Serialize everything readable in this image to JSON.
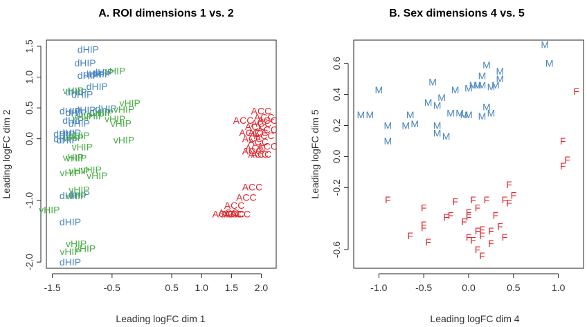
{
  "colors": {
    "blue": "#4a86c0",
    "green": "#4aae44",
    "red": "#e0262d"
  },
  "chart_data": [
    {
      "type": "scatter",
      "title": "A. ROI dimensions 1 vs. 2",
      "xlabel": "Leading logFC dim 1",
      "ylabel": "Leading logFC dim 2",
      "xlim": [
        -1.6,
        2.25
      ],
      "ylim": [
        -2.1,
        1.6
      ],
      "xticks": [
        -1.5,
        -0.5,
        0.5,
        1.0,
        1.5,
        2.0
      ],
      "xtick_labels": [
        "-1.5",
        "-0.5",
        "0.5",
        "1.0",
        "1.5",
        "2.0"
      ],
      "yticks": [
        1.5,
        1.0,
        0.5,
        0.0,
        -1.0,
        -2.0
      ],
      "ytick_labels": [
        "1.5",
        "1.0",
        "0.5",
        "0.0",
        "-1.0",
        "-2.0"
      ],
      "series": [
        {
          "name": "dHIP",
          "color": "#4a86c0",
          "points": [
            [
              -0.9,
              1.45
            ],
            [
              -0.95,
              1.23
            ],
            [
              -0.8,
              1.05
            ],
            [
              -0.9,
              1.03
            ],
            [
              -0.7,
              1.05
            ],
            [
              -0.65,
              1.08
            ],
            [
              -0.75,
              0.85
            ],
            [
              -1.1,
              0.76
            ],
            [
              -1.0,
              0.72
            ],
            [
              -0.95,
              0.47
            ],
            [
              -1.2,
              0.45
            ],
            [
              -1.1,
              0.42
            ],
            [
              -0.6,
              0.49
            ],
            [
              -0.7,
              0.43
            ],
            [
              -1.15,
              0.3
            ],
            [
              -1.05,
              0.25
            ],
            [
              -1.2,
              0.1
            ],
            [
              -1.3,
              0.08
            ],
            [
              -1.25,
              -0.02
            ],
            [
              -1.3,
              0.0
            ],
            [
              -1.05,
              -0.9
            ],
            [
              -1.2,
              -0.92
            ],
            [
              -1.2,
              -1.35
            ],
            [
              -1.2,
              -2.0
            ]
          ]
        },
        {
          "name": "vHIP",
          "color": "#4aae44",
          "points": [
            [
              -0.45,
              1.1
            ],
            [
              -1.15,
              0.78
            ],
            [
              -0.2,
              0.58
            ],
            [
              -0.3,
              0.48
            ],
            [
              -0.65,
              0.42
            ],
            [
              -0.8,
              0.37
            ],
            [
              -0.45,
              0.32
            ],
            [
              -0.35,
              0.25
            ],
            [
              -1.0,
              0.36
            ],
            [
              -0.3,
              -0.02
            ],
            [
              -1.0,
              -0.13
            ],
            [
              -1.05,
              0.05
            ],
            [
              -1.15,
              0.02
            ],
            [
              -1.15,
              -0.3
            ],
            [
              -1.1,
              -0.31
            ],
            [
              -0.85,
              -0.5
            ],
            [
              -1.05,
              -0.52
            ],
            [
              -1.2,
              -0.55
            ],
            [
              -0.75,
              -0.6
            ],
            [
              -1.05,
              -0.83
            ],
            [
              -1.1,
              -0.92
            ],
            [
              -1.55,
              -1.15
            ],
            [
              -1.1,
              -1.7
            ],
            [
              -0.95,
              -1.78
            ],
            [
              -1.2,
              -1.83
            ]
          ]
        },
        {
          "name": "ACC",
          "color": "#e0262d",
          "points": [
            [
              2.0,
              0.45
            ],
            [
              2.05,
              0.35
            ],
            [
              2.1,
              0.3
            ],
            [
              2.0,
              0.25
            ],
            [
              1.9,
              0.2
            ],
            [
              2.1,
              0.15
            ],
            [
              1.95,
              0.1
            ],
            [
              2.05,
              0.05
            ],
            [
              1.8,
              0.1
            ],
            [
              1.85,
              0.0
            ],
            [
              1.95,
              -0.05
            ],
            [
              2.1,
              -0.12
            ],
            [
              1.9,
              -0.15
            ],
            [
              1.85,
              -0.2
            ],
            [
              1.95,
              -0.25
            ],
            [
              1.7,
              0.3
            ],
            [
              2.0,
              -0.25
            ],
            [
              1.85,
              -0.78
            ],
            [
              1.75,
              -0.95
            ],
            [
              1.55,
              -1.08
            ],
            [
              1.45,
              -1.2
            ],
            [
              1.35,
              -1.22
            ],
            [
              1.5,
              -1.22
            ],
            [
              1.55,
              -1.22
            ],
            [
              1.65,
              -1.22
            ]
          ]
        }
      ]
    },
    {
      "type": "scatter",
      "title": "B. Sex dimensions 4 vs. 5",
      "xlabel": "Leading logFC dim 4",
      "ylabel": "Leading logFC dim 5",
      "xlim": [
        -1.28,
        1.28
      ],
      "ylim": [
        -0.72,
        0.75
      ],
      "xticks": [
        -1.0,
        -0.5,
        0.0,
        0.5,
        1.0
      ],
      "xtick_labels": [
        "-1.0",
        "-0.5",
        "0.0",
        "0.5",
        "1.0"
      ],
      "yticks": [
        0.6,
        0.4,
        0.2,
        0.0,
        -0.2,
        -0.6
      ],
      "ytick_labels": [
        "0.6",
        "0.4",
        "0.2",
        "0.0",
        "-0.2",
        "-0.6"
      ],
      "series": [
        {
          "name": "M",
          "color": "#4a86c0",
          "points": [
            [
              0.85,
              0.72
            ],
            [
              0.9,
              0.6
            ],
            [
              0.2,
              0.59
            ],
            [
              0.35,
              0.55
            ],
            [
              0.15,
              0.52
            ],
            [
              0.35,
              0.5
            ],
            [
              -0.4,
              0.48
            ],
            [
              0.05,
              0.46
            ],
            [
              0.3,
              0.46
            ],
            [
              0.1,
              0.46
            ],
            [
              0.0,
              0.44
            ],
            [
              0.15,
              0.46
            ],
            [
              0.25,
              0.45
            ],
            [
              -1.0,
              0.43
            ],
            [
              -0.15,
              0.43
            ],
            [
              -0.3,
              0.38
            ],
            [
              -0.45,
              0.35
            ],
            [
              0.2,
              0.32
            ],
            [
              -0.35,
              0.33
            ],
            [
              0.25,
              0.28
            ],
            [
              -0.1,
              0.28
            ],
            [
              -0.05,
              0.27
            ],
            [
              0.0,
              0.27
            ],
            [
              0.15,
              0.26
            ],
            [
              -0.65,
              0.27
            ],
            [
              -0.2,
              0.28
            ],
            [
              -1.2,
              0.27
            ],
            [
              -1.1,
              0.27
            ],
            [
              -0.6,
              0.21
            ],
            [
              -0.7,
              0.2
            ],
            [
              -0.35,
              0.2
            ],
            [
              -0.35,
              0.15
            ],
            [
              -0.25,
              0.13
            ],
            [
              -0.9,
              0.2
            ],
            [
              -0.9,
              0.1
            ]
          ]
        },
        {
          "name": "F",
          "color": "#e0262d",
          "points": [
            [
              1.2,
              0.42
            ],
            [
              1.05,
              0.1
            ],
            [
              1.1,
              -0.02
            ],
            [
              1.05,
              -0.06
            ],
            [
              0.45,
              -0.18
            ],
            [
              -0.9,
              -0.28
            ],
            [
              0.5,
              -0.25
            ],
            [
              0.45,
              -0.3
            ],
            [
              0.4,
              -0.28
            ],
            [
              0.2,
              -0.28
            ],
            [
              0.05,
              -0.28
            ],
            [
              -0.15,
              -0.29
            ],
            [
              -0.5,
              -0.33
            ],
            [
              0.1,
              -0.33
            ],
            [
              0.3,
              -0.38
            ],
            [
              -0.2,
              -0.38
            ],
            [
              -0.25,
              -0.39
            ],
            [
              0.0,
              -0.36
            ],
            [
              0.0,
              -0.39
            ],
            [
              -0.5,
              -0.44
            ],
            [
              -0.5,
              -0.46
            ],
            [
              -0.05,
              -0.42
            ],
            [
              0.35,
              -0.45
            ],
            [
              0.15,
              -0.47
            ],
            [
              0.1,
              -0.48
            ],
            [
              0.25,
              -0.48
            ],
            [
              -0.65,
              -0.51
            ],
            [
              0.0,
              -0.52
            ],
            [
              0.4,
              -0.52
            ],
            [
              0.15,
              -0.51
            ],
            [
              0.05,
              -0.54
            ],
            [
              -0.45,
              -0.55
            ],
            [
              0.25,
              -0.56
            ],
            [
              0.1,
              -0.6
            ],
            [
              0.15,
              -0.64
            ]
          ]
        }
      ]
    }
  ]
}
